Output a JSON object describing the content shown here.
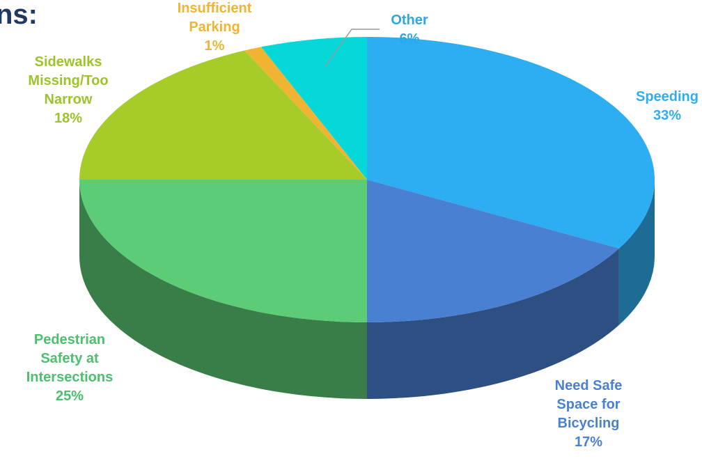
{
  "chart_data": {
    "type": "pie",
    "title": "ns:",
    "categories": [
      "Speeding",
      "Need Safe\nSpace for\nBicycling",
      "Pedestrian\nSafety at\nIntersections",
      "Sidewalks\nMissing/Too\nNarrow",
      "Insufficient\nParking",
      "Other"
    ],
    "values": [
      33,
      17,
      25,
      18,
      1,
      6
    ],
    "value_labels": [
      "33%",
      "17%",
      "25%",
      "18%",
      "1%",
      "6%"
    ],
    "colors": [
      "#2eaef2",
      "#4a80d2",
      "#5ccc76",
      "#a6cc2a",
      "#f0b432",
      "#06d8da"
    ]
  }
}
